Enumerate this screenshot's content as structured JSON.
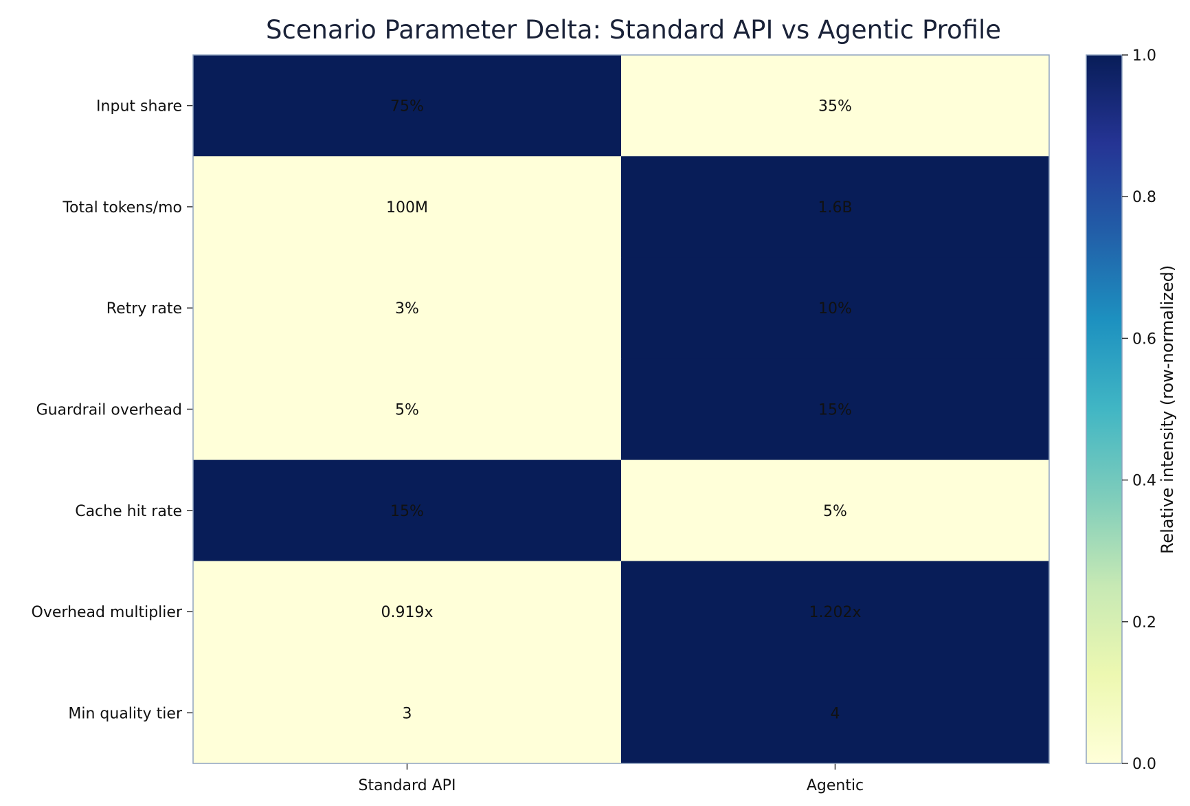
{
  "chart_data": {
    "type": "heatmap",
    "title": "Scenario Parameter Delta: Standard API vs Agentic Profile",
    "columns": [
      "Standard API",
      "Agentic"
    ],
    "rows": [
      {
        "label": "Input share",
        "values": [
          "75%",
          "35%"
        ],
        "intensity": [
          1,
          0
        ]
      },
      {
        "label": "Total tokens/mo",
        "values": [
          "100M",
          "1.6B"
        ],
        "intensity": [
          0,
          1
        ]
      },
      {
        "label": "Retry rate",
        "values": [
          "3%",
          "10%"
        ],
        "intensity": [
          0,
          1
        ]
      },
      {
        "label": "Guardrail overhead",
        "values": [
          "5%",
          "15%"
        ],
        "intensity": [
          0,
          1
        ]
      },
      {
        "label": "Cache hit rate",
        "values": [
          "15%",
          "5%"
        ],
        "intensity": [
          1,
          0
        ]
      },
      {
        "label": "Overhead multiplier",
        "values": [
          "0.919x",
          "1.202x"
        ],
        "intensity": [
          0,
          1
        ]
      },
      {
        "label": "Min quality tier",
        "values": [
          "3",
          "4"
        ],
        "intensity": [
          0,
          1
        ]
      }
    ],
    "colorbar": {
      "label": "Relative intensity (row-normalized)",
      "range": [
        0,
        1
      ],
      "ticks": [
        "0.0",
        "0.2",
        "0.4",
        "0.6",
        "0.8",
        "1.0"
      ]
    },
    "colormap": "YlGnBu",
    "colors": {
      "low": "#ffffd9",
      "high": "#081d58",
      "frame": "#8fa3bf",
      "text": "#111111",
      "title": "#1a2238"
    }
  }
}
